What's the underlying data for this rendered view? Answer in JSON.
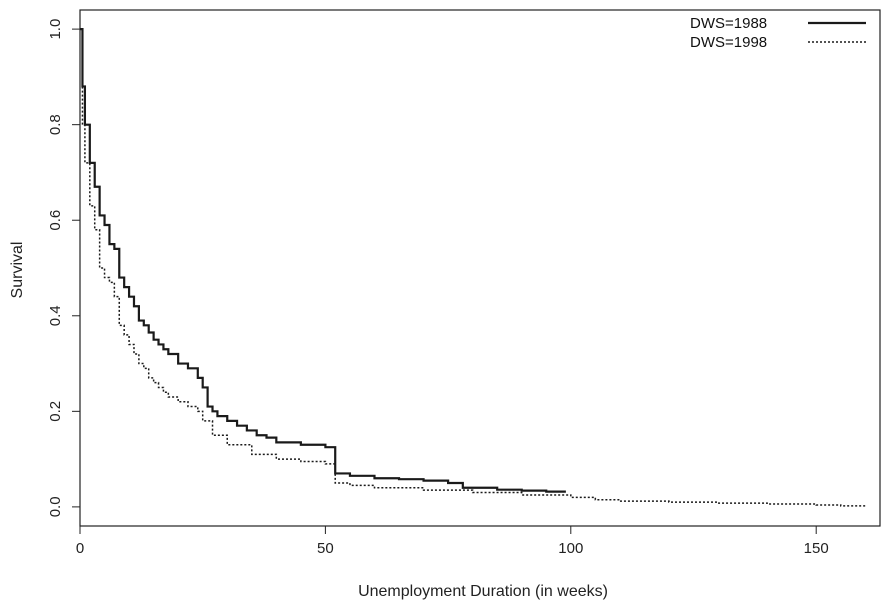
{
  "chart_data": {
    "type": "line",
    "title": "",
    "xlabel": "Unemployment Duration (in weeks)",
    "ylabel": "Survival",
    "xlim": [
      0,
      163
    ],
    "ylim": [
      -0.04,
      1.04
    ],
    "x_ticks": [
      0,
      50,
      100,
      150
    ],
    "x_tick_labels": [
      "0",
      "50",
      "100",
      "150"
    ],
    "y_ticks": [
      0.0,
      0.2,
      0.4,
      0.6,
      0.8,
      1.0
    ],
    "y_tick_labels": [
      "0.0",
      "0.2",
      "0.4",
      "0.6",
      "0.8",
      "1.0"
    ],
    "grid": false,
    "legend_position": "top-right",
    "series": [
      {
        "name": "DWS=1988",
        "color": "#1a1a1a",
        "line_style": "solid",
        "step": true,
        "x": [
          0,
          0.5,
          1,
          2,
          3,
          4,
          5,
          6,
          7,
          8,
          9,
          10,
          11,
          12,
          13,
          14,
          15,
          16,
          17,
          18,
          20,
          22,
          24,
          25,
          26,
          27,
          28,
          30,
          32,
          34,
          36,
          38,
          40,
          45,
          50,
          52,
          55,
          60,
          65,
          70,
          75,
          78,
          85,
          90,
          95,
          99
        ],
        "y": [
          1.0,
          0.88,
          0.8,
          0.72,
          0.67,
          0.61,
          0.59,
          0.55,
          0.54,
          0.48,
          0.46,
          0.44,
          0.42,
          0.39,
          0.38,
          0.365,
          0.35,
          0.34,
          0.33,
          0.32,
          0.3,
          0.29,
          0.27,
          0.25,
          0.21,
          0.2,
          0.19,
          0.18,
          0.17,
          0.16,
          0.15,
          0.145,
          0.135,
          0.13,
          0.125,
          0.07,
          0.065,
          0.06,
          0.058,
          0.055,
          0.05,
          0.04,
          0.036,
          0.034,
          0.032,
          0.032
        ]
      },
      {
        "name": "DWS=1998",
        "color": "#1a1a1a",
        "line_style": "dotted",
        "step": true,
        "x": [
          0,
          0.5,
          1,
          2,
          3,
          4,
          5,
          6,
          7,
          8,
          9,
          10,
          11,
          12,
          13,
          14,
          15,
          16,
          17,
          18,
          20,
          22,
          24,
          25,
          27,
          30,
          35,
          40,
          45,
          50,
          52,
          55,
          60,
          70,
          80,
          90,
          100,
          105,
          110,
          120,
          130,
          140,
          150,
          155,
          160
        ],
        "y": [
          1.0,
          0.8,
          0.72,
          0.63,
          0.58,
          0.5,
          0.48,
          0.47,
          0.44,
          0.38,
          0.36,
          0.34,
          0.32,
          0.3,
          0.29,
          0.27,
          0.26,
          0.25,
          0.24,
          0.23,
          0.22,
          0.21,
          0.2,
          0.18,
          0.15,
          0.13,
          0.11,
          0.1,
          0.095,
          0.09,
          0.05,
          0.045,
          0.04,
          0.035,
          0.03,
          0.025,
          0.02,
          0.015,
          0.012,
          0.01,
          0.008,
          0.006,
          0.004,
          0.002,
          0.0
        ]
      }
    ]
  }
}
